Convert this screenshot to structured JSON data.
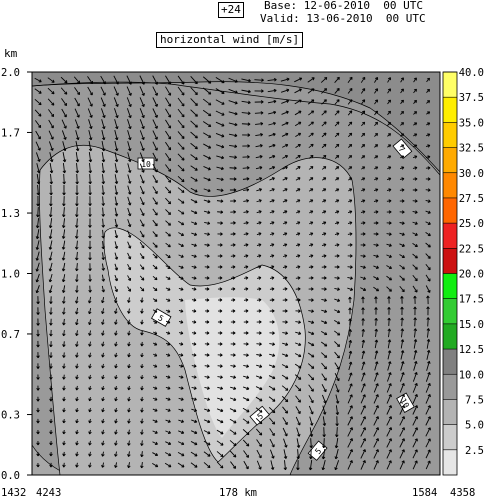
{
  "header": {
    "forecast_step": "+24",
    "base_label": "Base:",
    "base_value": "12-06-2010  00 UTC",
    "valid_label": "Valid:",
    "valid_value": "13-06-2010  00 UTC"
  },
  "chart_data": {
    "type": "heatmap",
    "title": "horizontal wind [m/s]",
    "ylabel": "km",
    "ylim": [
      0.0,
      2.0
    ],
    "y_ticks": [
      "0.0",
      "0.3",
      "0.7",
      "1.0",
      "1.3",
      "1.7",
      "2.0"
    ],
    "x_tick_labels": [
      "1432",
      "4243",
      "178 km",
      "1584",
      "4358"
    ],
    "colorbar": {
      "levels": [
        "2.5",
        "5.0",
        "7.5",
        "10.0",
        "12.5",
        "15.0",
        "17.5",
        "20.0",
        "22.5",
        "25.0",
        "27.5",
        "30.0",
        "32.5",
        "35.0",
        "37.5",
        "40.0"
      ],
      "colors": [
        "#e6e6e6",
        "#cccccc",
        "#b3b3b3",
        "#999999",
        "#808080",
        "#22aa22",
        "#33cc33",
        "#11ee11",
        "#cc1111",
        "#ee2222",
        "#ff6600",
        "#ff8800",
        "#ffaa00",
        "#ffcc00",
        "#ffee00",
        "#ffff66"
      ]
    },
    "fill_levels": {
      "outer": "7.5-10.0",
      "mid": "5.0-7.5",
      "inner": "2.5-5.0",
      "core": "0.0-2.5"
    },
    "fill_colors": {
      "outer": "#9a9a9a",
      "mid": "#b4b4b4",
      "inner": "#cdcdcd",
      "core": "#e2e2e2"
    },
    "contour_labels": [
      "10",
      "5",
      "7",
      "5",
      "5",
      "10"
    ],
    "grid": false,
    "legend_position": "right"
  }
}
